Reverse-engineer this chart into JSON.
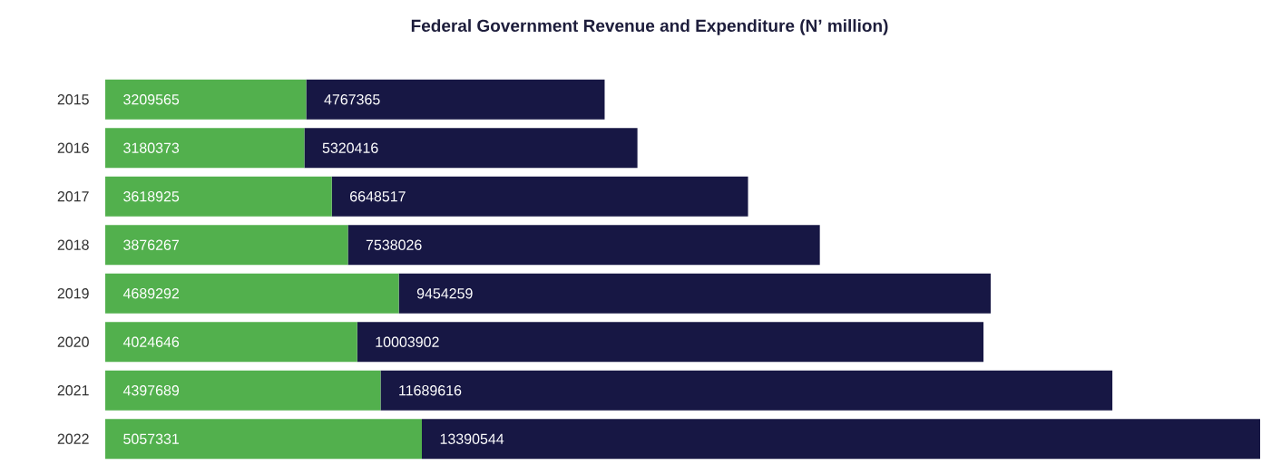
{
  "chart_data": {
    "type": "bar",
    "title": "Federal Government Revenue and Expenditure (N’ million)",
    "orientation": "horizontal",
    "stacked": true,
    "data_labels": true,
    "categories": [
      "2015",
      "2016",
      "2017",
      "2018",
      "2019",
      "2020",
      "2021",
      "2022"
    ],
    "series": [
      {
        "color": "#52b04d",
        "values": [
          3209565,
          3180373,
          3618925,
          3876267,
          4689292,
          4024646,
          4397689,
          5057331
        ]
      },
      {
        "color": "#171744",
        "values": [
          4767365,
          5320416,
          6648517,
          7538026,
          9454259,
          10003902,
          11689616,
          13390544
        ]
      }
    ]
  }
}
